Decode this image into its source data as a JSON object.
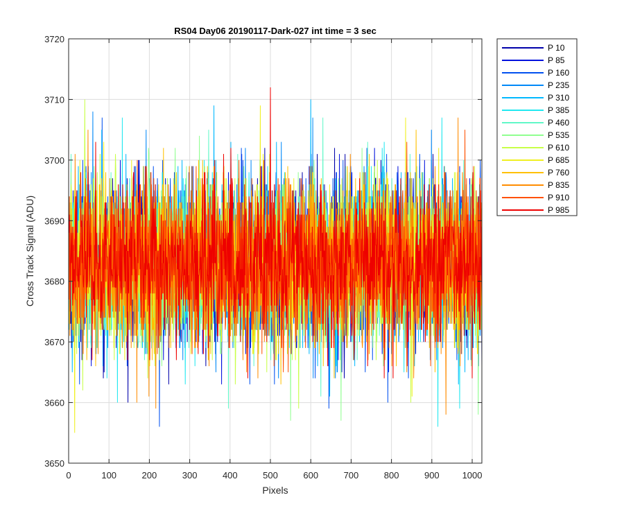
{
  "chart_data": {
    "type": "line",
    "title": "RS04 Day06 20190117-Dark-027 int time = 3 sec",
    "xlabel": "Pixels",
    "ylabel": "Cross Track Signal (ADU)",
    "xlim": [
      0,
      1024
    ],
    "ylim": [
      3650,
      3720
    ],
    "xticks": [
      0,
      100,
      200,
      300,
      400,
      500,
      600,
      700,
      800,
      900,
      1000
    ],
    "yticks": [
      3650,
      3660,
      3670,
      3680,
      3690,
      3700,
      3710,
      3720
    ],
    "grid": true,
    "legend_position": "outside-top-right",
    "x_start": 1,
    "x_end": 1024,
    "noise": {
      "mean": 3683,
      "std": 6.5,
      "min": 3655,
      "max": 3712
    },
    "series": [
      {
        "name": "P 10",
        "color": "#0000aa"
      },
      {
        "name": "P 85",
        "color": "#0010dd"
      },
      {
        "name": "P 160",
        "color": "#0050f0"
      },
      {
        "name": "P 235",
        "color": "#0088f8"
      },
      {
        "name": "P 310",
        "color": "#00b8ff"
      },
      {
        "name": "P 385",
        "color": "#20e8f0"
      },
      {
        "name": "P 460",
        "color": "#60f8c8"
      },
      {
        "name": "P 535",
        "color": "#90ff90"
      },
      {
        "name": "P 610",
        "color": "#c8ff48"
      },
      {
        "name": "P 685",
        "color": "#f0f020"
      },
      {
        "name": "P 760",
        "color": "#ffc000"
      },
      {
        "name": "P 835",
        "color": "#ff8c00"
      },
      {
        "name": "P 910",
        "color": "#ff5000"
      },
      {
        "name": "P 985",
        "color": "#ee0000"
      }
    ],
    "spikes": [
      {
        "series": "P 985",
        "x": 500,
        "y": 3712
      },
      {
        "series": "P 610",
        "x": 40,
        "y": 3710
      },
      {
        "series": "P 685",
        "x": 475,
        "y": 3709
      },
      {
        "series": "P 310",
        "x": 600,
        "y": 3710
      },
      {
        "series": "P 310",
        "x": 360,
        "y": 3709
      },
      {
        "series": "P 235",
        "x": 60,
        "y": 3708
      },
      {
        "series": "P 385",
        "x": 925,
        "y": 3707
      },
      {
        "series": "P 835",
        "x": 965,
        "y": 3707
      },
      {
        "series": "P 685",
        "x": 15,
        "y": 3655
      },
      {
        "series": "P 160",
        "x": 225,
        "y": 3656
      },
      {
        "series": "P 385",
        "x": 915,
        "y": 3656
      },
      {
        "series": "P 535",
        "x": 550,
        "y": 3657
      },
      {
        "series": "P 535",
        "x": 675,
        "y": 3657
      },
      {
        "series": "P 535",
        "x": 1015,
        "y": 3658
      },
      {
        "series": "P 835",
        "x": 935,
        "y": 3658
      }
    ]
  }
}
